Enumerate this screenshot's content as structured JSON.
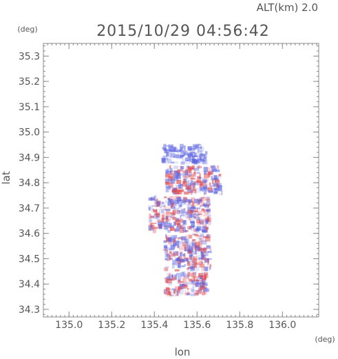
{
  "header": {
    "altitude_label": "ALT(km) 2.0",
    "timestamp": "2015/10/29 04:56:42"
  },
  "chart_data": {
    "type": "heatmap",
    "title": "2015/10/29 04:56:42",
    "xlabel": "lon",
    "ylabel": "lat",
    "x_unit": "(deg)",
    "y_unit": "(deg)",
    "xlim": [
      134.88,
      136.17
    ],
    "ylim": [
      34.27,
      35.35
    ],
    "x_ticks": [
      135.0,
      135.2,
      135.4,
      135.6,
      135.8,
      136.0
    ],
    "x_tick_labels": [
      "135.0",
      "135.2",
      "135.4",
      "135.6",
      "135.8",
      "136.0"
    ],
    "y_ticks": [
      34.3,
      34.4,
      34.5,
      34.6,
      34.7,
      34.8,
      34.9,
      35.0,
      35.1,
      35.2,
      35.3
    ],
    "y_tick_labels": [
      "34.3",
      "34.4",
      "34.5",
      "34.6",
      "34.7",
      "34.8",
      "34.9",
      "35.0",
      "35.1",
      "35.2",
      "35.3"
    ],
    "minor_step": 0.02,
    "colors": {
      "negative": "#5a62e0",
      "positive": "#e0474c",
      "axis": "#888888",
      "text": "#555555"
    },
    "data_regions": [
      {
        "lon": [
          135.43,
          135.65
        ],
        "lat": [
          34.87,
          34.955
        ]
      },
      {
        "lon": [
          135.45,
          135.72
        ],
        "lat": [
          34.75,
          34.87
        ]
      },
      {
        "lon": [
          135.37,
          135.67
        ],
        "lat": [
          34.6,
          34.75
        ]
      },
      {
        "lon": [
          135.44,
          135.67
        ],
        "lat": [
          34.45,
          34.6
        ]
      },
      {
        "lon": [
          135.44,
          135.66
        ],
        "lat": [
          34.35,
          34.45
        ]
      }
    ]
  }
}
